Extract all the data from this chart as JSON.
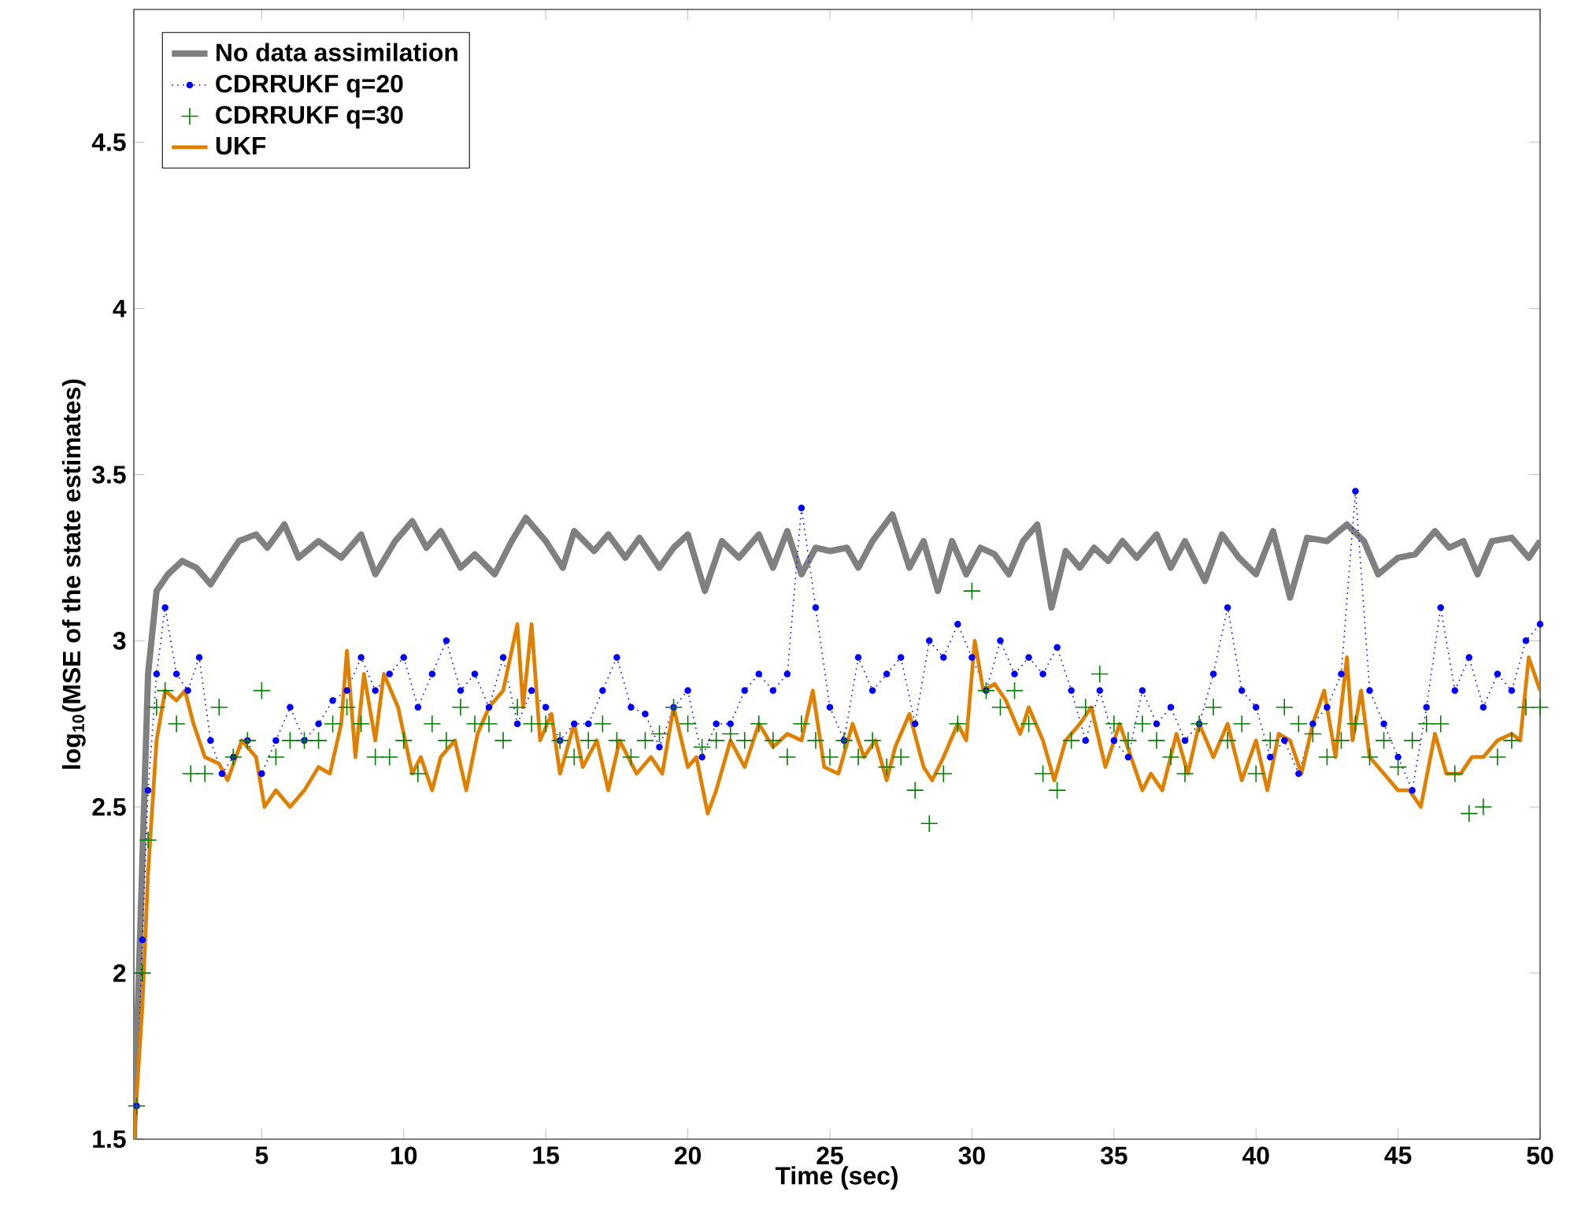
{
  "chart_data": {
    "type": "line",
    "xlabel": "Time (sec)",
    "ylabel": "log$_{10}$(MSE of the state estimates)",
    "xlim": [
      0.5,
      50
    ],
    "ylim": [
      1.5,
      4.9
    ],
    "xticks": [
      5,
      10,
      15,
      20,
      25,
      30,
      35,
      40,
      45,
      50
    ],
    "yticks": [
      1.5,
      2,
      2.5,
      3,
      3.5,
      4,
      4.5
    ],
    "grid": false,
    "legend": "top left",
    "series": [
      {
        "name": "No data assimilation",
        "color": "#808080",
        "line_style": "solid",
        "marker": "none",
        "x": [
          0.5,
          1.0,
          1.3,
          1.7,
          2.2,
          2.7,
          3.2,
          3.8,
          4.2,
          4.8,
          5.2,
          5.8,
          6.3,
          7,
          7.8,
          8.5,
          9,
          9.7,
          10.3,
          10.8,
          11.3,
          12,
          12.5,
          13.2,
          13.8,
          14.3,
          15,
          15.6,
          16,
          16.7,
          17.2,
          17.8,
          18.3,
          19,
          19.5,
          20,
          20.6,
          21.2,
          21.8,
          22.5,
          23,
          23.5,
          24,
          24.5,
          25,
          25.6,
          26,
          26.5,
          27.2,
          27.8,
          28.3,
          28.8,
          29.3,
          29.8,
          30.3,
          30.8,
          31.3,
          31.8,
          32.3,
          32.8,
          33.3,
          33.8,
          34.3,
          34.8,
          35.3,
          35.8,
          36.5,
          37,
          37.5,
          38.2,
          38.8,
          39.4,
          40,
          40.6,
          41.2,
          41.8,
          42.5,
          43.2,
          43.8,
          44.3,
          45,
          45.6,
          46.3,
          46.8,
          47.3,
          47.8,
          48.3,
          49,
          49.6,
          50
        ],
        "values": [
          1.5,
          2.9,
          3.15,
          3.2,
          3.24,
          3.22,
          3.17,
          3.25,
          3.3,
          3.32,
          3.28,
          3.35,
          3.25,
          3.3,
          3.25,
          3.32,
          3.2,
          3.3,
          3.36,
          3.28,
          3.33,
          3.22,
          3.26,
          3.2,
          3.3,
          3.37,
          3.3,
          3.22,
          3.33,
          3.27,
          3.32,
          3.25,
          3.31,
          3.22,
          3.28,
          3.32,
          3.15,
          3.3,
          3.25,
          3.32,
          3.22,
          3.33,
          3.2,
          3.28,
          3.27,
          3.28,
          3.22,
          3.3,
          3.38,
          3.22,
          3.3,
          3.15,
          3.3,
          3.2,
          3.28,
          3.26,
          3.2,
          3.3,
          3.35,
          3.1,
          3.27,
          3.22,
          3.28,
          3.24,
          3.3,
          3.25,
          3.32,
          3.22,
          3.3,
          3.18,
          3.32,
          3.25,
          3.2,
          3.33,
          3.13,
          3.31,
          3.3,
          3.35,
          3.3,
          3.2,
          3.25,
          3.26,
          3.33,
          3.28,
          3.3,
          3.2,
          3.3,
          3.31,
          3.25,
          3.3
        ]
      },
      {
        "name": "CDRRUKF q=20",
        "color": "#0000ff",
        "line_style": "dotted",
        "marker": "circle",
        "x": [
          0.6,
          0.8,
          1.0,
          1.3,
          1.6,
          2,
          2.4,
          2.8,
          3.2,
          3.6,
          4,
          4.5,
          5,
          5.5,
          6,
          6.5,
          7,
          7.5,
          8,
          8.5,
          9,
          9.5,
          10,
          10.5,
          11,
          11.5,
          12,
          12.5,
          13,
          13.5,
          14,
          14.5,
          15,
          15.5,
          16,
          16.5,
          17,
          17.5,
          18,
          18.5,
          19,
          19.5,
          20,
          20.5,
          21,
          21.5,
          22,
          22.5,
          23,
          23.5,
          24,
          24.5,
          25,
          25.5,
          26,
          26.5,
          27,
          27.5,
          28,
          28.5,
          29,
          29.5,
          30,
          30.5,
          31,
          31.5,
          32,
          32.5,
          33,
          33.5,
          34,
          34.5,
          35,
          35.5,
          36,
          36.5,
          37,
          37.5,
          38,
          38.5,
          39,
          39.5,
          40,
          40.5,
          41,
          41.5,
          42,
          42.5,
          43,
          43.5,
          44,
          44.5,
          45,
          45.5,
          46,
          46.5,
          47,
          47.5,
          48,
          48.5,
          49,
          49.5,
          50
        ],
        "values": [
          1.6,
          2.1,
          2.55,
          2.9,
          3.1,
          2.9,
          2.85,
          2.95,
          2.7,
          2.6,
          2.65,
          2.7,
          2.6,
          2.7,
          2.8,
          2.7,
          2.75,
          2.82,
          2.85,
          2.95,
          2.85,
          2.9,
          2.95,
          2.8,
          2.9,
          3.0,
          2.85,
          2.9,
          2.8,
          2.95,
          2.75,
          2.85,
          2.8,
          2.7,
          2.75,
          2.75,
          2.85,
          2.95,
          2.8,
          2.78,
          2.68,
          2.8,
          2.85,
          2.65,
          2.75,
          2.75,
          2.85,
          2.9,
          2.85,
          2.9,
          3.4,
          3.1,
          2.8,
          2.7,
          2.95,
          2.85,
          2.9,
          2.95,
          2.75,
          3.0,
          2.95,
          3.05,
          2.95,
          2.85,
          3.0,
          2.9,
          2.95,
          2.9,
          2.98,
          2.85,
          2.7,
          2.85,
          2.7,
          2.65,
          2.85,
          2.75,
          2.8,
          2.7,
          2.75,
          2.9,
          3.1,
          2.85,
          2.8,
          2.65,
          2.7,
          2.6,
          2.75,
          2.8,
          2.9,
          3.45,
          2.85,
          2.75,
          2.65,
          2.55,
          2.8,
          3.1,
          2.85,
          2.95,
          2.8,
          2.9,
          2.85,
          3.0,
          3.05
        ]
      },
      {
        "name": "CDRRUKF q=30",
        "color": "#008000",
        "type": "scatter",
        "line_style": "none",
        "marker": "cross",
        "x": [
          0.6,
          0.8,
          1.0,
          1.3,
          1.6,
          2,
          2.5,
          3,
          3.5,
          4,
          4.5,
          5,
          5.5,
          6,
          6.5,
          7,
          7.5,
          8,
          8.5,
          9,
          9.5,
          10,
          10.5,
          11,
          11.5,
          12,
          12.5,
          13,
          13.5,
          14,
          14.5,
          15,
          15.5,
          16,
          16.5,
          17,
          17.5,
          18,
          18.5,
          19,
          19.5,
          20,
          20.5,
          21,
          21.5,
          22,
          22.5,
          23,
          23.5,
          24,
          24.5,
          25,
          25.5,
          26,
          26.5,
          27,
          27.5,
          28,
          28.5,
          29,
          29.5,
          30,
          30.5,
          31,
          31.5,
          32,
          32.5,
          33,
          33.5,
          34,
          34.5,
          35,
          35.5,
          36,
          36.5,
          37,
          37.5,
          38,
          38.5,
          39,
          39.5,
          40,
          40.5,
          41,
          41.5,
          42,
          42.5,
          43,
          43.5,
          44,
          44.5,
          45,
          45.5,
          46,
          46.5,
          47,
          47.5,
          48,
          48.5,
          49,
          49.5,
          50
        ],
        "values": [
          1.6,
          2.0,
          2.4,
          2.8,
          2.85,
          2.75,
          2.6,
          2.6,
          2.8,
          2.65,
          2.7,
          2.85,
          2.65,
          2.7,
          2.7,
          2.7,
          2.75,
          2.8,
          2.75,
          2.65,
          2.65,
          2.7,
          2.6,
          2.75,
          2.7,
          2.8,
          2.75,
          2.75,
          2.7,
          2.8,
          2.75,
          2.75,
          2.7,
          2.65,
          2.7,
          2.75,
          2.7,
          2.65,
          2.7,
          2.72,
          2.8,
          2.75,
          2.68,
          2.7,
          2.72,
          2.7,
          2.75,
          2.7,
          2.65,
          2.75,
          2.7,
          2.65,
          2.7,
          2.65,
          2.7,
          2.62,
          2.65,
          2.55,
          2.45,
          2.6,
          2.75,
          3.15,
          2.85,
          2.8,
          2.85,
          2.75,
          2.6,
          2.55,
          2.7,
          2.8,
          2.9,
          2.75,
          2.7,
          2.75,
          2.7,
          2.65,
          2.6,
          2.75,
          2.8,
          2.7,
          2.75,
          2.6,
          2.7,
          2.8,
          2.75,
          2.72,
          2.65,
          2.7,
          2.75,
          2.65,
          2.7,
          2.62,
          2.7,
          2.75,
          2.75,
          2.6,
          2.48,
          2.5,
          2.65,
          2.7,
          2.8,
          2.8
        ]
      },
      {
        "name": "UKF",
        "color": "#e08000",
        "line_style": "solid",
        "marker": "none",
        "x": [
          0.5,
          0.8,
          1.0,
          1.3,
          1.6,
          2,
          2.3,
          2.6,
          3,
          3.5,
          3.8,
          4.3,
          4.8,
          5.1,
          5.5,
          6,
          6.5,
          7,
          7.4,
          7.8,
          8,
          8.3,
          8.6,
          9,
          9.3,
          9.8,
          10.3,
          10.6,
          11,
          11.3,
          11.8,
          12.2,
          12.6,
          13,
          13.5,
          14,
          14.2,
          14.5,
          14.8,
          15.2,
          15.5,
          16,
          16.3,
          16.8,
          17.2,
          17.6,
          18.2,
          18.7,
          19.1,
          19.5,
          20,
          20.3,
          20.7,
          21,
          21.5,
          22,
          22.5,
          23,
          23.5,
          24,
          24.4,
          24.8,
          25.3,
          25.8,
          26.2,
          26.6,
          27,
          27.3,
          27.8,
          28.3,
          28.6,
          29,
          29.5,
          29.8,
          30.1,
          30.4,
          30.8,
          31.2,
          31.7,
          32,
          32.5,
          32.9,
          33.3,
          33.8,
          34.2,
          34.7,
          35.2,
          35.6,
          36,
          36.3,
          36.7,
          37.2,
          37.6,
          38,
          38.5,
          39,
          39.5,
          40,
          40.4,
          40.8,
          41.2,
          41.6,
          42,
          42.4,
          42.8,
          43.2,
          43.4,
          43.7,
          44,
          44.5,
          45,
          45.4,
          45.8,
          46.3,
          46.7,
          47.2,
          47.6,
          48,
          48.5,
          49,
          49.3,
          49.6,
          50
        ],
        "values": [
          1.5,
          1.9,
          2.3,
          2.7,
          2.85,
          2.82,
          2.85,
          2.75,
          2.65,
          2.63,
          2.58,
          2.7,
          2.65,
          2.5,
          2.55,
          2.5,
          2.55,
          2.62,
          2.6,
          2.75,
          2.97,
          2.65,
          2.9,
          2.7,
          2.9,
          2.8,
          2.6,
          2.65,
          2.55,
          2.65,
          2.7,
          2.55,
          2.72,
          2.8,
          2.85,
          3.05,
          2.8,
          3.05,
          2.7,
          2.78,
          2.6,
          2.75,
          2.62,
          2.7,
          2.55,
          2.7,
          2.6,
          2.65,
          2.6,
          2.8,
          2.62,
          2.65,
          2.48,
          2.55,
          2.7,
          2.62,
          2.75,
          2.68,
          2.72,
          2.7,
          2.85,
          2.62,
          2.6,
          2.75,
          2.65,
          2.7,
          2.58,
          2.68,
          2.78,
          2.62,
          2.58,
          2.65,
          2.75,
          2.7,
          3.0,
          2.85,
          2.87,
          2.82,
          2.72,
          2.8,
          2.7,
          2.58,
          2.7,
          2.75,
          2.8,
          2.62,
          2.75,
          2.65,
          2.55,
          2.6,
          2.55,
          2.72,
          2.6,
          2.75,
          2.65,
          2.75,
          2.58,
          2.7,
          2.55,
          2.72,
          2.7,
          2.6,
          2.75,
          2.85,
          2.65,
          2.95,
          2.7,
          2.85,
          2.65,
          2.6,
          2.55,
          2.55,
          2.5,
          2.72,
          2.6,
          2.6,
          2.65,
          2.65,
          2.7,
          2.72,
          2.7,
          2.95,
          2.85
        ]
      }
    ]
  }
}
